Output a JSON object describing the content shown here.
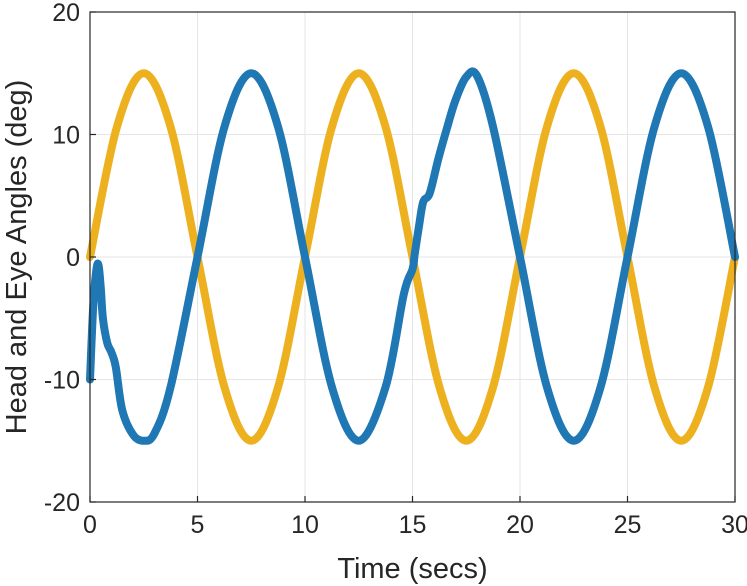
{
  "chart_data": {
    "type": "line",
    "title": "",
    "xlabel": "Time (secs)",
    "ylabel": "Head and Eye Angles (deg)",
    "xlim": [
      0,
      30
    ],
    "ylim": [
      -20,
      20
    ],
    "x_ticks": [
      0,
      5,
      10,
      15,
      20,
      25,
      30
    ],
    "y_ticks": [
      -20,
      -10,
      0,
      10,
      20
    ],
    "x_tick_labels": [
      "0",
      "5",
      "10",
      "15",
      "20",
      "25",
      "30"
    ],
    "y_tick_labels": [
      "-20",
      "-10",
      "0",
      "10",
      "20"
    ],
    "grid": true,
    "legend": "none",
    "series": [
      {
        "color": "#EDB120",
        "x": [
          0,
          1.25,
          2.5,
          3.75,
          5,
          6.25,
          7.5,
          8.75,
          10,
          11.25,
          12.5,
          13.75,
          15,
          16.25,
          17.5,
          18.75,
          20,
          21.25,
          22.5,
          23.75,
          25,
          26.25,
          27.5,
          28.75,
          30
        ],
        "y": [
          0,
          10.6,
          15,
          10.6,
          0,
          -10.6,
          -15,
          -10.6,
          0,
          10.6,
          15,
          10.6,
          0,
          -10.6,
          -15,
          -10.6,
          0,
          10.6,
          15,
          10.6,
          0,
          -10.6,
          -15,
          -10.6,
          0
        ]
      },
      {
        "color": "#1F77B4",
        "x": [
          0,
          0.15,
          0.3,
          0.4,
          0.5,
          0.6,
          0.8,
          1.0,
          1.2,
          1.5,
          2.0,
          2.5,
          3.0,
          3.75,
          5,
          6.25,
          7.5,
          8.75,
          10,
          11.25,
          12.5,
          13.75,
          14.6,
          15.0,
          15.1,
          15.3,
          15.5,
          15.8,
          16.2,
          16.6,
          17.0,
          17.5,
          18.0,
          18.75,
          20,
          21.25,
          22.5,
          23.75,
          25,
          26.25,
          27.5,
          28.75,
          30
        ],
        "y": [
          -10,
          -4,
          -1,
          -0.7,
          -2.5,
          -5,
          -7,
          -7.8,
          -9,
          -12.5,
          -14.5,
          -15,
          -14.4,
          -10.6,
          0,
          10.6,
          15,
          10.6,
          0,
          -10.6,
          -15,
          -10.6,
          -3,
          -1,
          0.2,
          2.5,
          4.5,
          5.2,
          8,
          10.5,
          12.8,
          14.7,
          14.8,
          10.6,
          0,
          -10.6,
          -15,
          -10.6,
          0,
          10.6,
          15,
          10.6,
          0
        ]
      }
    ]
  }
}
